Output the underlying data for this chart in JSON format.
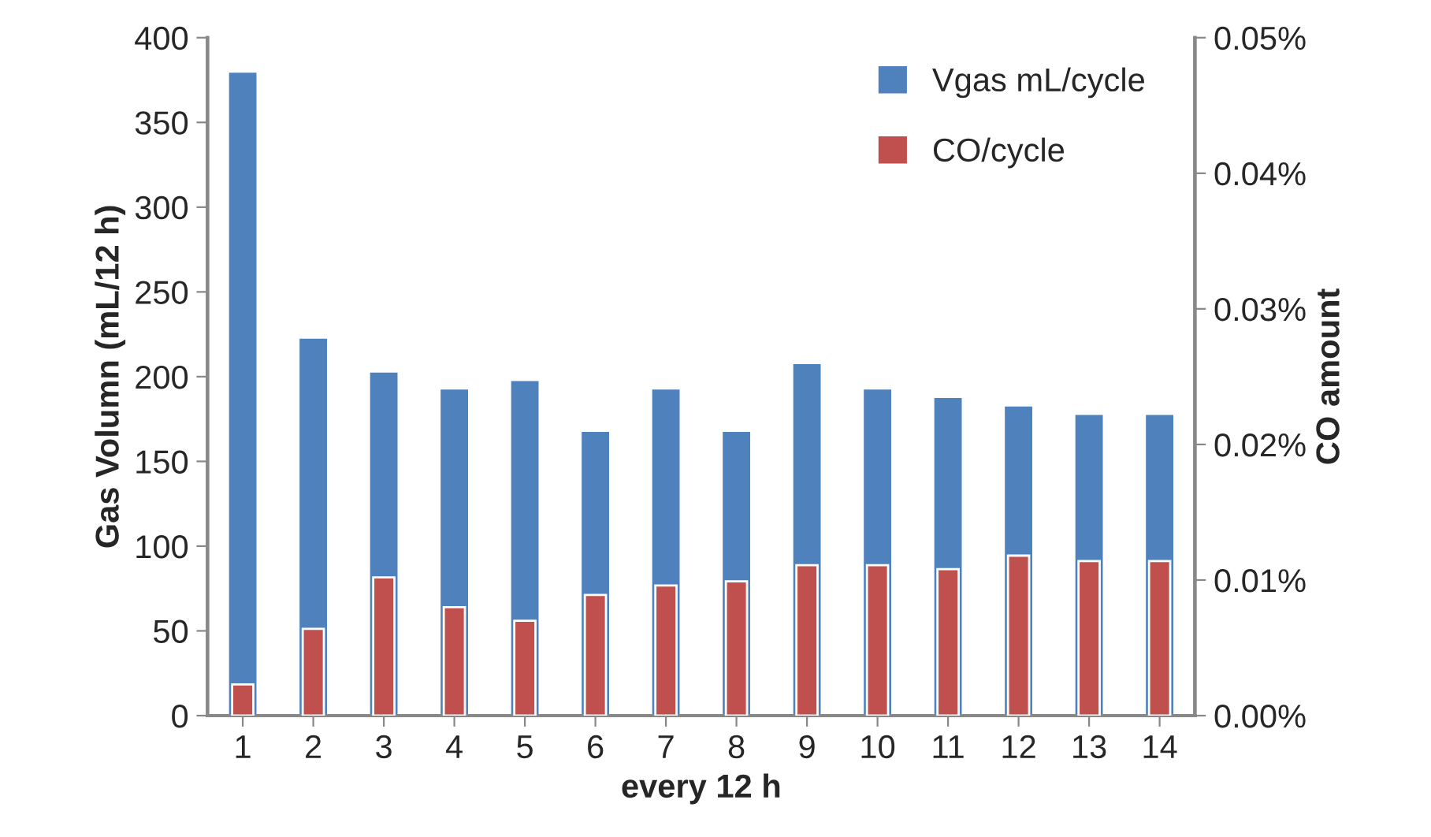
{
  "chart_data": {
    "type": "bar",
    "xlabel": "every 12 h",
    "ylabel": "Gas Volumn (mL/12 h)",
    "y2label": "CO amount",
    "categories": [
      "1",
      "2",
      "3",
      "4",
      "5",
      "6",
      "7",
      "8",
      "9",
      "10",
      "11",
      "12",
      "13",
      "14"
    ],
    "series": [
      {
        "name": "Vgas mL/cycle",
        "color": "#4f81bd",
        "values": [
          380,
          223,
          203,
          193,
          198,
          168,
          193,
          168,
          208,
          193,
          188,
          183,
          178,
          178
        ]
      },
      {
        "name": "CO/cycle",
        "color": "#c0504d",
        "axis": "y2",
        "values": [
          0.0023,
          0.0064,
          0.0102,
          0.008,
          0.007,
          0.0089,
          0.0096,
          0.0099,
          0.0111,
          0.0111,
          0.0108,
          0.0118,
          0.0114,
          0.0114
        ]
      }
    ],
    "ylim": [
      0,
      400
    ],
    "yticks": [
      0,
      50,
      100,
      150,
      200,
      250,
      300,
      350,
      400
    ],
    "y2lim": [
      0,
      0.05
    ],
    "y2ticks": [
      {
        "value": 0,
        "label": "0.00%"
      },
      {
        "value": 0.01,
        "label": "0.01%"
      },
      {
        "value": 0.02,
        "label": "0.02%"
      },
      {
        "value": 0.03,
        "label": "0.03%"
      },
      {
        "value": 0.04,
        "label": "0.04%"
      },
      {
        "value": 0.05,
        "label": "0.05%"
      }
    ],
    "grid": false,
    "legend": "top right"
  }
}
